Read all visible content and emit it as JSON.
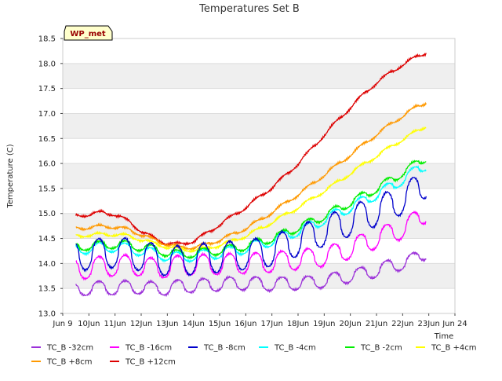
{
  "chart_data": {
    "type": "line",
    "title": "Temperatures Set B",
    "xlabel": "Time",
    "ylabel": "Temperature (C)",
    "badge": "WP_met",
    "xlim": [
      9,
      24
    ],
    "ylim": [
      13.0,
      18.5
    ],
    "xticks": [
      {
        "v": 9,
        "label": "Jun 9"
      },
      {
        "v": 10,
        "label": "10Jun"
      },
      {
        "v": 11,
        "label": "11Jun"
      },
      {
        "v": 12,
        "label": "12Jun"
      },
      {
        "v": 13,
        "label": "13Jun"
      },
      {
        "v": 14,
        "label": "14Jun"
      },
      {
        "v": 15,
        "label": "15Jun"
      },
      {
        "v": 16,
        "label": "16Jun"
      },
      {
        "v": 17,
        "label": "17Jun"
      },
      {
        "v": 18,
        "label": "18Jun"
      },
      {
        "v": 19,
        "label": "19Jun"
      },
      {
        "v": 20,
        "label": "20Jun"
      },
      {
        "v": 21,
        "label": "21Jun"
      },
      {
        "v": 22,
        "label": "22Jun"
      },
      {
        "v": 23,
        "label": "23Jun"
      },
      {
        "v": 24,
        "label": "Jun 24"
      }
    ],
    "yticks": [
      "13.0",
      "13.5",
      "14.0",
      "14.5",
      "15.0",
      "15.5",
      "16.0",
      "16.5",
      "17.0",
      "17.5",
      "18.0",
      "18.5"
    ],
    "grid": true,
    "bands": "alternating gray",
    "x_day": [
      9.5,
      10.0,
      10.5,
      11.0,
      11.5,
      12.0,
      12.5,
      13.0,
      13.5,
      14.0,
      14.5,
      15.0,
      15.5,
      16.0,
      16.5,
      17.0,
      17.5,
      18.0,
      18.5,
      19.0,
      19.5,
      20.0,
      20.5,
      21.0,
      21.5,
      22.0,
      22.5,
      22.9
    ],
    "series": [
      {
        "name": "TC_B -32cm",
        "color": "#9b30d9",
        "diurnal_amp": 0.13,
        "values": [
          13.47,
          13.5,
          13.52,
          13.5,
          13.53,
          13.52,
          13.5,
          13.5,
          13.55,
          13.55,
          13.57,
          13.58,
          13.6,
          13.6,
          13.6,
          13.58,
          13.6,
          13.6,
          13.62,
          13.65,
          13.7,
          13.75,
          13.8,
          13.85,
          13.95,
          14.0,
          14.1,
          14.22
        ]
      },
      {
        "name": "TC_B -16cm",
        "color": "#ff00ff",
        "diurnal_amp": 0.2,
        "values": [
          13.88,
          13.9,
          13.95,
          13.95,
          13.97,
          13.95,
          13.9,
          13.92,
          13.97,
          13.97,
          13.98,
          13.98,
          14.0,
          14.0,
          14.02,
          14.02,
          14.05,
          14.08,
          14.1,
          14.15,
          14.2,
          14.3,
          14.4,
          14.5,
          14.6,
          14.7,
          14.85,
          15.02
        ]
      },
      {
        "name": "TC_B -8cm",
        "color": "#0000cc",
        "diurnal_amp": 0.3,
        "values": [
          14.15,
          14.18,
          14.2,
          14.22,
          14.2,
          14.15,
          14.1,
          14.05,
          14.05,
          14.08,
          14.1,
          14.12,
          14.15,
          14.18,
          14.2,
          14.25,
          14.35,
          14.45,
          14.55,
          14.65,
          14.75,
          14.85,
          14.95,
          15.05,
          15.15,
          15.3,
          15.45,
          15.62
        ]
      },
      {
        "name": "TC_B -4cm",
        "color": "#00ffff",
        "diurnal_amp": 0.1,
        "values": [
          14.28,
          14.3,
          14.32,
          14.33,
          14.3,
          14.25,
          14.2,
          14.15,
          14.12,
          14.15,
          14.18,
          14.2,
          14.25,
          14.3,
          14.38,
          14.45,
          14.55,
          14.65,
          14.75,
          14.88,
          15.0,
          15.12,
          15.25,
          15.38,
          15.52,
          15.68,
          15.85,
          15.97
        ]
      },
      {
        "name": "TC_B -2cm",
        "color": "#00ee00",
        "diurnal_amp": 0.08,
        "values": [
          14.33,
          14.35,
          14.37,
          14.38,
          14.37,
          14.33,
          14.28,
          14.22,
          14.18,
          14.2,
          14.23,
          14.26,
          14.3,
          14.35,
          14.42,
          14.5,
          14.6,
          14.72,
          14.83,
          14.95,
          15.08,
          15.22,
          15.35,
          15.5,
          15.65,
          15.82,
          15.98,
          16.12
        ]
      },
      {
        "name": "TC_B +4cm",
        "color": "#ffff00",
        "diurnal_amp": 0.03,
        "values": [
          14.55,
          14.57,
          14.58,
          14.58,
          14.55,
          14.48,
          14.4,
          14.33,
          14.28,
          14.27,
          14.3,
          14.37,
          14.45,
          14.55,
          14.68,
          14.82,
          14.97,
          15.12,
          15.28,
          15.45,
          15.62,
          15.8,
          15.98,
          16.15,
          16.32,
          16.48,
          16.63,
          16.75
        ]
      },
      {
        "name": "TC_B +8cm",
        "color": "#ff9900",
        "diurnal_amp": 0.03,
        "values": [
          14.7,
          14.72,
          14.74,
          14.73,
          14.68,
          14.58,
          14.47,
          14.38,
          14.32,
          14.32,
          14.38,
          14.47,
          14.58,
          14.7,
          14.85,
          15.02,
          15.2,
          15.38,
          15.57,
          15.77,
          15.97,
          16.17,
          16.38,
          16.58,
          16.77,
          16.95,
          17.12,
          17.22
        ]
      },
      {
        "name": "TC_B +12cm",
        "color": "#dd0000",
        "diurnal_amp": 0.03,
        "values": [
          14.95,
          14.98,
          15.02,
          14.98,
          14.85,
          14.65,
          14.5,
          14.4,
          14.38,
          14.45,
          14.6,
          14.78,
          14.95,
          15.12,
          15.32,
          15.52,
          15.75,
          16.0,
          16.28,
          16.57,
          16.85,
          17.12,
          17.38,
          17.62,
          17.8,
          17.98,
          18.12,
          18.22
        ]
      }
    ]
  }
}
